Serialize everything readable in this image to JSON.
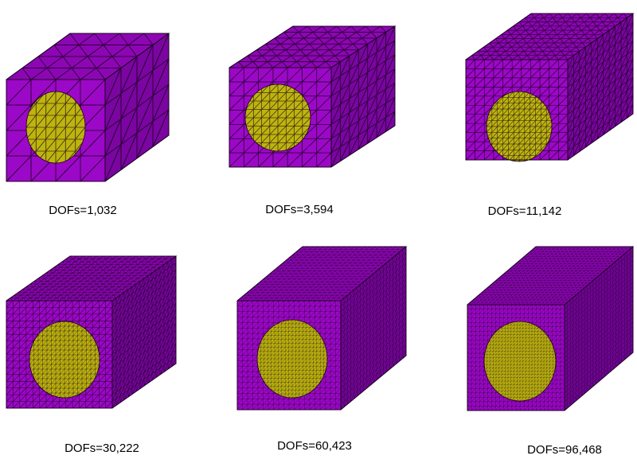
{
  "panels": [
    {
      "caption": "DOFs=1,032",
      "density": 4
    },
    {
      "caption": "DOFs=3,594",
      "density": 7
    },
    {
      "caption": "DOFs=11,142",
      "density": 11
    },
    {
      "caption": "DOFs=30,222",
      "density": 16
    },
    {
      "caption": "DOFs=60,423",
      "density": 20
    },
    {
      "caption": "DOFs=96,468",
      "density": 24
    }
  ],
  "colors": {
    "front": "#9c08c7",
    "top": "#8d06b4",
    "side": "#7a05a0",
    "inclusion": "#bdb50c",
    "edge": "#1a0020",
    "background": "#ffffff"
  }
}
